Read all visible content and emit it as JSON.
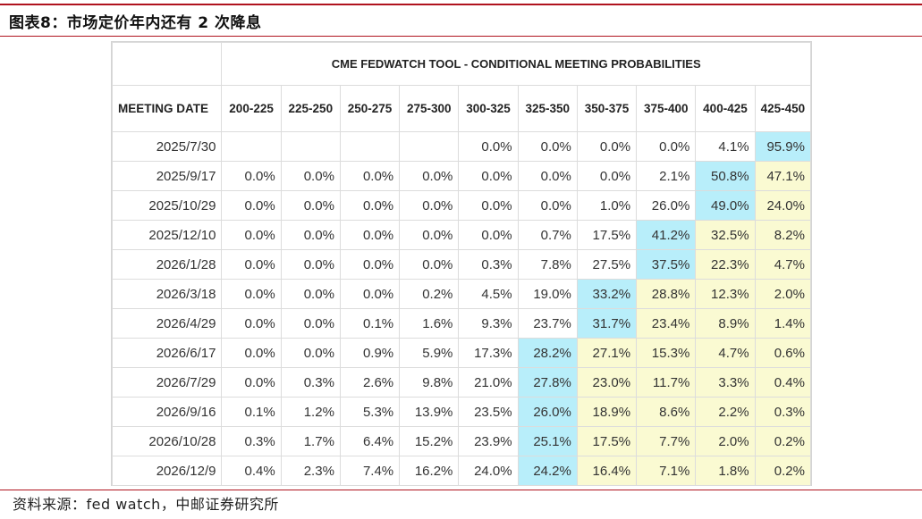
{
  "figure_title": "图表8：市场定价年内还有 2 次降息",
  "source": "资料来源：fed watch，中邮证券研究所",
  "colors": {
    "rule": "#b0131e",
    "highlight_blue": "#b8eefa",
    "highlight_yellow": "#fafad2"
  },
  "chart_data": {
    "type": "table",
    "title": "CME FEDWATCH TOOL - CONDITIONAL MEETING PROBABILITIES",
    "row_header": "MEETING DATE",
    "columns": [
      "200-225",
      "225-250",
      "250-275",
      "275-300",
      "300-325",
      "325-350",
      "350-375",
      "375-400",
      "400-425",
      "425-450"
    ],
    "rows": [
      {
        "date": "2025/7/30",
        "values": [
          "",
          "",
          "",
          "",
          "0.0%",
          "0.0%",
          "0.0%",
          "0.0%",
          "4.1%",
          "95.9%"
        ],
        "mode_col": 9
      },
      {
        "date": "2025/9/17",
        "values": [
          "0.0%",
          "0.0%",
          "0.0%",
          "0.0%",
          "0.0%",
          "0.0%",
          "0.0%",
          "2.1%",
          "50.8%",
          "47.1%"
        ],
        "mode_col": 8
      },
      {
        "date": "2025/10/29",
        "values": [
          "0.0%",
          "0.0%",
          "0.0%",
          "0.0%",
          "0.0%",
          "0.0%",
          "1.0%",
          "26.0%",
          "49.0%",
          "24.0%"
        ],
        "mode_col": 8
      },
      {
        "date": "2025/12/10",
        "values": [
          "0.0%",
          "0.0%",
          "0.0%",
          "0.0%",
          "0.0%",
          "0.7%",
          "17.5%",
          "41.2%",
          "32.5%",
          "8.2%"
        ],
        "mode_col": 7
      },
      {
        "date": "2026/1/28",
        "values": [
          "0.0%",
          "0.0%",
          "0.0%",
          "0.0%",
          "0.3%",
          "7.8%",
          "27.5%",
          "37.5%",
          "22.3%",
          "4.7%"
        ],
        "mode_col": 7
      },
      {
        "date": "2026/3/18",
        "values": [
          "0.0%",
          "0.0%",
          "0.0%",
          "0.2%",
          "4.5%",
          "19.0%",
          "33.2%",
          "28.8%",
          "12.3%",
          "2.0%"
        ],
        "mode_col": 6
      },
      {
        "date": "2026/4/29",
        "values": [
          "0.0%",
          "0.0%",
          "0.1%",
          "1.6%",
          "9.3%",
          "23.7%",
          "31.7%",
          "23.4%",
          "8.9%",
          "1.4%"
        ],
        "mode_col": 6
      },
      {
        "date": "2026/6/17",
        "values": [
          "0.0%",
          "0.0%",
          "0.9%",
          "5.9%",
          "17.3%",
          "28.2%",
          "27.1%",
          "15.3%",
          "4.7%",
          "0.6%"
        ],
        "mode_col": 5
      },
      {
        "date": "2026/7/29",
        "values": [
          "0.0%",
          "0.3%",
          "2.6%",
          "9.8%",
          "21.0%",
          "27.8%",
          "23.0%",
          "11.7%",
          "3.3%",
          "0.4%"
        ],
        "mode_col": 5
      },
      {
        "date": "2026/9/16",
        "values": [
          "0.1%",
          "1.2%",
          "5.3%",
          "13.9%",
          "23.5%",
          "26.0%",
          "18.9%",
          "8.6%",
          "2.2%",
          "0.3%"
        ],
        "mode_col": 5
      },
      {
        "date": "2026/10/28",
        "values": [
          "0.3%",
          "1.7%",
          "6.4%",
          "15.2%",
          "23.9%",
          "25.1%",
          "17.5%",
          "7.7%",
          "2.0%",
          "0.2%"
        ],
        "mode_col": 5
      },
      {
        "date": "2026/12/9",
        "values": [
          "0.4%",
          "2.3%",
          "7.4%",
          "16.2%",
          "24.0%",
          "24.2%",
          "16.4%",
          "7.1%",
          "1.8%",
          "0.2%"
        ],
        "mode_col": 5
      }
    ]
  }
}
